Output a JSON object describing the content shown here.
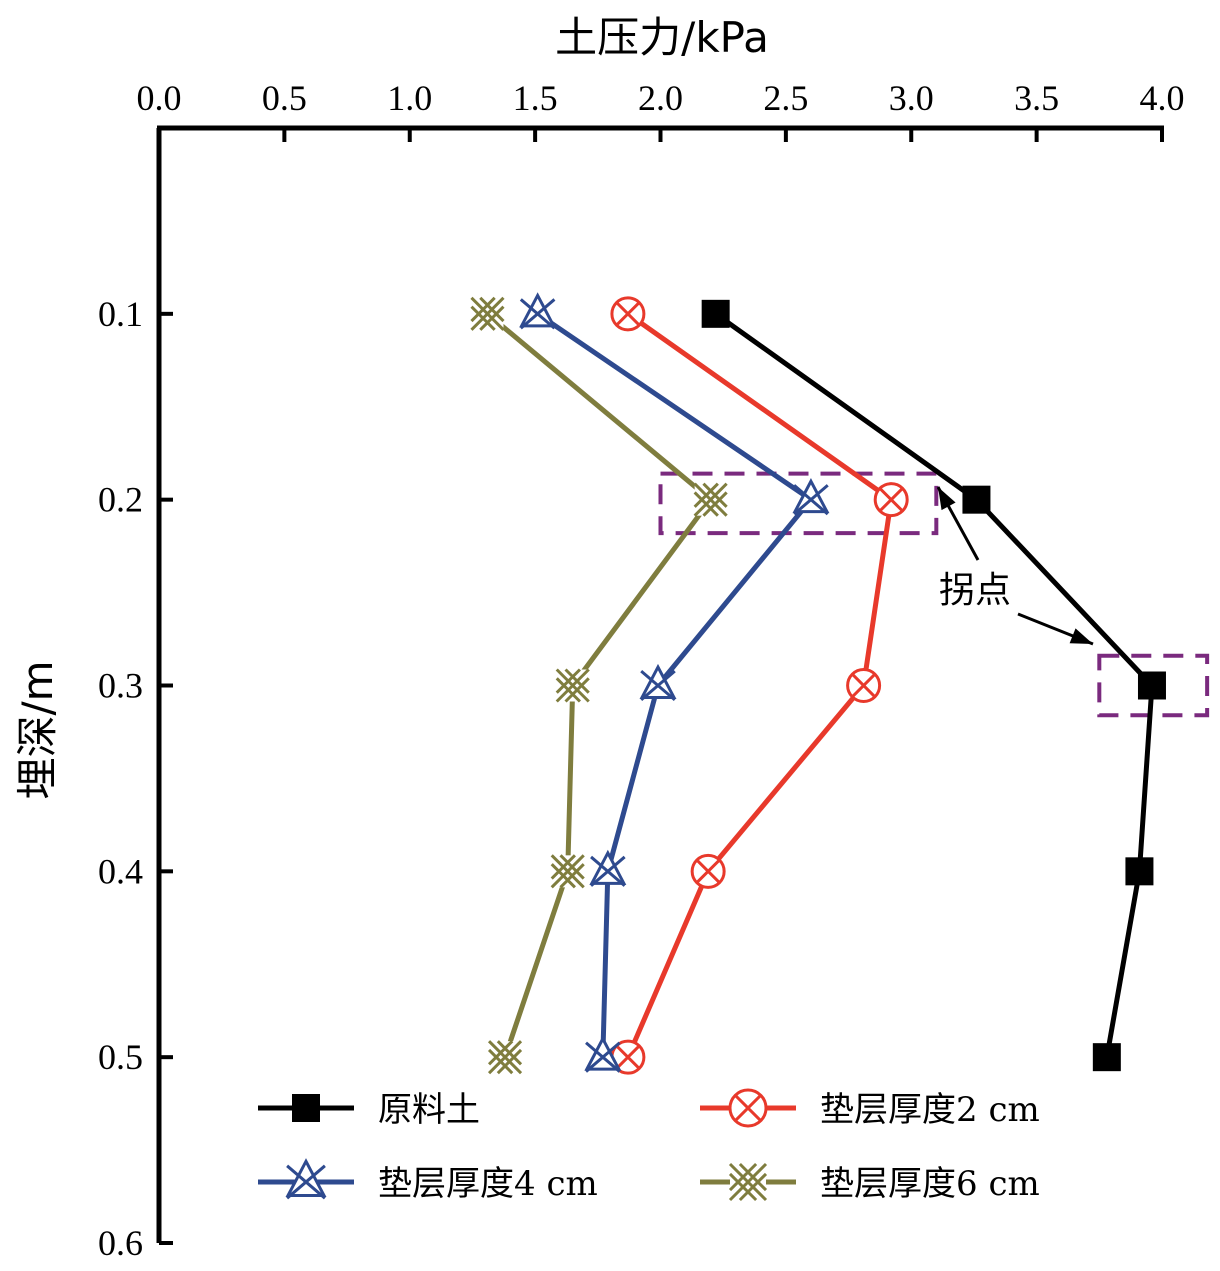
{
  "chart_data": {
    "type": "line",
    "title": "",
    "xlabel": "土压力/kPa",
    "ylabel": "埋深/m",
    "xlim": [
      0,
      4.0
    ],
    "ylim": [
      0,
      0.6
    ],
    "x_axis_position": "top",
    "y_axis_inverted": true,
    "x_ticks": [
      "0.0",
      "0.5",
      "1.0",
      "1.5",
      "2.0",
      "2.5",
      "3.0",
      "3.5",
      "4.0"
    ],
    "y_ticks": [
      "0.1",
      "0.2",
      "0.3",
      "0.4",
      "0.5",
      "0.6"
    ],
    "grid": false,
    "legend_position": "bottom",
    "series": [
      {
        "name": "原料土",
        "color": "#000000",
        "marker": "filled-square",
        "points": [
          [
            2.22,
            0.1
          ],
          [
            3.26,
            0.2
          ],
          [
            3.96,
            0.3
          ],
          [
            3.91,
            0.4
          ],
          [
            3.78,
            0.5
          ]
        ]
      },
      {
        "name": "垫层厚度2 cm",
        "color": "#e8392b",
        "marker": "circle-x",
        "points": [
          [
            1.87,
            0.1
          ],
          [
            2.92,
            0.2
          ],
          [
            2.81,
            0.3
          ],
          [
            2.19,
            0.4
          ],
          [
            1.87,
            0.5
          ]
        ]
      },
      {
        "name": "垫层厚度4 cm",
        "color": "#2e4a8f",
        "marker": "triangle-x",
        "points": [
          [
            1.51,
            0.1
          ],
          [
            2.6,
            0.2
          ],
          [
            1.99,
            0.3
          ],
          [
            1.79,
            0.4
          ],
          [
            1.77,
            0.5
          ]
        ]
      },
      {
        "name": "垫层厚度6 cm",
        "color": "#7f7d3e",
        "marker": "double-x",
        "points": [
          [
            1.31,
            0.1
          ],
          [
            2.2,
            0.2
          ],
          [
            1.65,
            0.3
          ],
          [
            1.63,
            0.4
          ],
          [
            1.38,
            0.5
          ]
        ]
      }
    ],
    "annotations": [
      {
        "text": "拐点",
        "color": "#7a2a7e",
        "box_style": "dashed",
        "boxes": [
          {
            "x_range": [
              2.0,
              3.1
            ],
            "y_range": [
              0.186,
              0.218
            ]
          },
          {
            "x_range": [
              3.75,
              4.18
            ],
            "y_range": [
              0.284,
              0.316
            ]
          }
        ]
      }
    ]
  }
}
